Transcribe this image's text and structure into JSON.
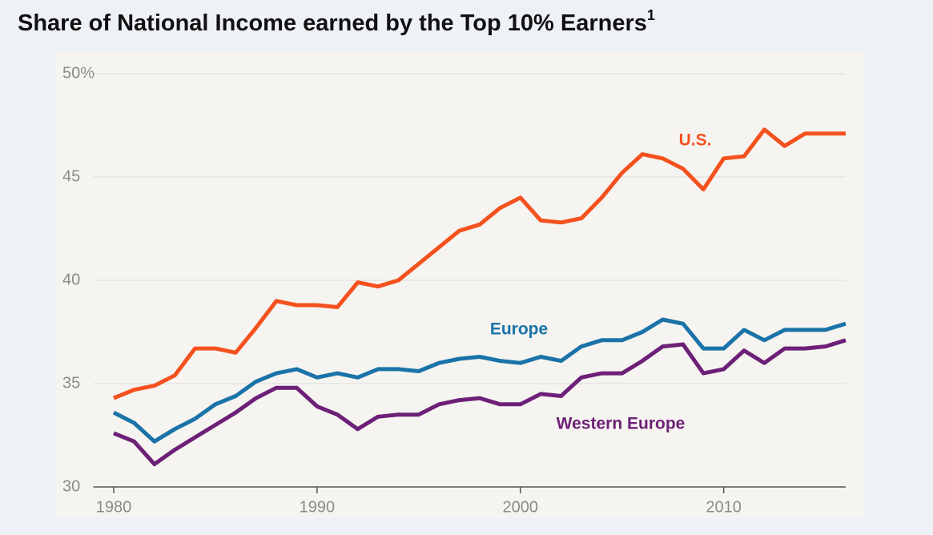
{
  "chart_data": {
    "type": "line",
    "title": "Share of National Income earned by the Top 10% Earners",
    "title_note": "1",
    "x": [
      1980,
      1981,
      1982,
      1983,
      1984,
      1985,
      1986,
      1987,
      1988,
      1989,
      1990,
      1991,
      1992,
      1993,
      1994,
      1995,
      1996,
      1997,
      1998,
      1999,
      2000,
      2001,
      2002,
      2003,
      2004,
      2005,
      2006,
      2007,
      2008,
      2009,
      2010,
      2011,
      2012,
      2013,
      2014,
      2015,
      2016
    ],
    "series": [
      {
        "name": "U.S.",
        "color": "#f4511e",
        "values": [
          34.3,
          34.7,
          34.9,
          35.4,
          36.7,
          36.7,
          36.5,
          37.7,
          39.0,
          38.8,
          38.8,
          38.7,
          39.9,
          39.7,
          40.0,
          40.8,
          41.6,
          42.4,
          42.7,
          43.5,
          44.0,
          42.9,
          42.8,
          43.0,
          44.0,
          45.2,
          46.1,
          45.9,
          45.4,
          44.4,
          45.9,
          46.0,
          47.3,
          46.5,
          47.1,
          47.1,
          47.1
        ]
      },
      {
        "name": "Europe",
        "color": "#1a73a8",
        "values": [
          33.6,
          33.1,
          32.2,
          32.8,
          33.3,
          34.0,
          34.4,
          35.1,
          35.5,
          35.7,
          35.3,
          35.5,
          35.3,
          35.7,
          35.7,
          35.6,
          36.0,
          36.2,
          36.3,
          36.1,
          36.0,
          36.3,
          36.1,
          36.8,
          37.1,
          37.1,
          37.5,
          38.1,
          37.9,
          36.7,
          36.7,
          37.6,
          37.1,
          37.6,
          37.6,
          37.6,
          37.9
        ]
      },
      {
        "name": "Western Europe",
        "color": "#6d2077",
        "values": [
          32.6,
          32.2,
          31.1,
          31.8,
          32.4,
          33.0,
          33.6,
          34.3,
          34.8,
          34.8,
          33.9,
          33.5,
          32.8,
          33.4,
          33.5,
          33.5,
          34.0,
          34.2,
          34.3,
          34.0,
          34.0,
          34.5,
          34.4,
          35.3,
          35.5,
          35.5,
          36.1,
          36.8,
          36.9,
          35.5,
          35.7,
          36.6,
          36.0,
          36.7,
          36.7,
          36.8,
          37.1
        ]
      }
    ],
    "xlim": [
      1979,
      2016
    ],
    "xticks": [
      1980,
      1990,
      2000,
      2010
    ],
    "ylim": [
      30,
      50
    ],
    "yticks": [
      30,
      35,
      40,
      45,
      {
        "value": 50,
        "label": "50%"
      }
    ],
    "grid": true
  }
}
